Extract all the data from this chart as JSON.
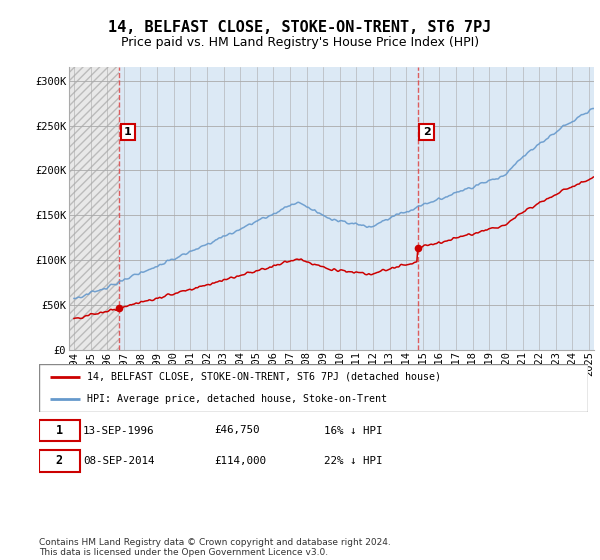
{
  "title": "14, BELFAST CLOSE, STOKE-ON-TRENT, ST6 7PJ",
  "subtitle": "Price paid vs. HM Land Registry's House Price Index (HPI)",
  "ylabel_ticks": [
    "£0",
    "£50K",
    "£100K",
    "£150K",
    "£200K",
    "£250K",
    "£300K"
  ],
  "ytick_values": [
    0,
    50000,
    100000,
    150000,
    200000,
    250000,
    300000
  ],
  "ylim": [
    0,
    315000
  ],
  "xlim_start": 1993.7,
  "xlim_end": 2025.3,
  "sale1_date": 1996.71,
  "sale1_price": 46750,
  "sale2_date": 2014.69,
  "sale2_price": 114000,
  "legend_line1": "14, BELFAST CLOSE, STOKE-ON-TRENT, ST6 7PJ (detached house)",
  "legend_line2": "HPI: Average price, detached house, Stoke-on-Trent",
  "footnote": "Contains HM Land Registry data © Crown copyright and database right 2024.\nThis data is licensed under the Open Government Licence v3.0.",
  "price_color": "#cc0000",
  "hpi_color": "#6699cc",
  "bg_blue": "#dce9f5",
  "bg_hatch_color": "#cccccc",
  "grid_color": "#aaaaaa",
  "vline_color": "#dd4444",
  "title_fontsize": 11,
  "subtitle_fontsize": 9,
  "tick_fontsize": 7.5,
  "xtick_years": [
    1994,
    1995,
    1996,
    1997,
    1998,
    1999,
    2000,
    2001,
    2002,
    2003,
    2004,
    2005,
    2006,
    2007,
    2008,
    2009,
    2010,
    2011,
    2012,
    2013,
    2014,
    2015,
    2016,
    2017,
    2018,
    2019,
    2020,
    2021,
    2022,
    2023,
    2024,
    2025
  ]
}
